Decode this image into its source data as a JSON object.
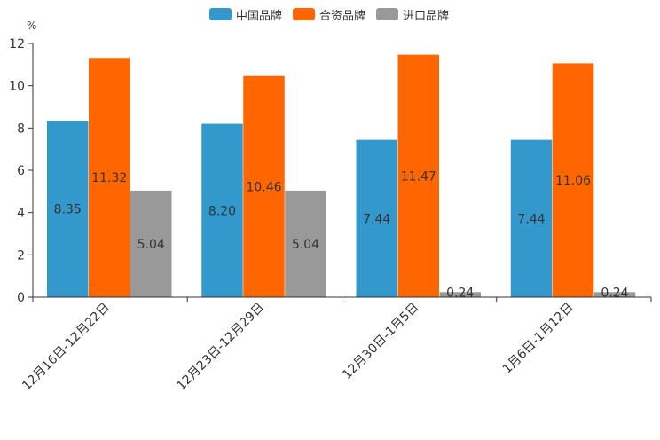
{
  "chart_data": {
    "type": "bar",
    "unit": "%",
    "categories": [
      "12月16日-12月22日",
      "12月23日-12月29日",
      "12月30日-1月5日",
      "1月6日-1月12日"
    ],
    "series": [
      {
        "name": "中国品牌",
        "color": "#3399cc",
        "values": [
          8.35,
          8.2,
          7.44,
          7.44
        ],
        "labels": [
          "8.35",
          "8.20",
          "7.44",
          "7.44"
        ]
      },
      {
        "name": "合资品牌",
        "color": "#ff6600",
        "values": [
          11.32,
          10.46,
          11.47,
          11.06
        ],
        "labels": [
          "11.32",
          "10.46",
          "11.47",
          "11.06"
        ]
      },
      {
        "name": "进口品牌",
        "color": "#999999",
        "values": [
          5.04,
          5.04,
          0.24,
          0.24
        ],
        "labels": [
          "5.04",
          "5.04",
          "0.24",
          "0.24"
        ]
      }
    ],
    "ylim": [
      0,
      12
    ],
    "yticks": [
      0,
      2,
      4,
      6,
      8,
      10,
      12
    ],
    "ytick_labels": [
      "0",
      "2",
      "4",
      "6",
      "8",
      "10",
      "12"
    ],
    "legend": "top-center",
    "grid": false
  }
}
